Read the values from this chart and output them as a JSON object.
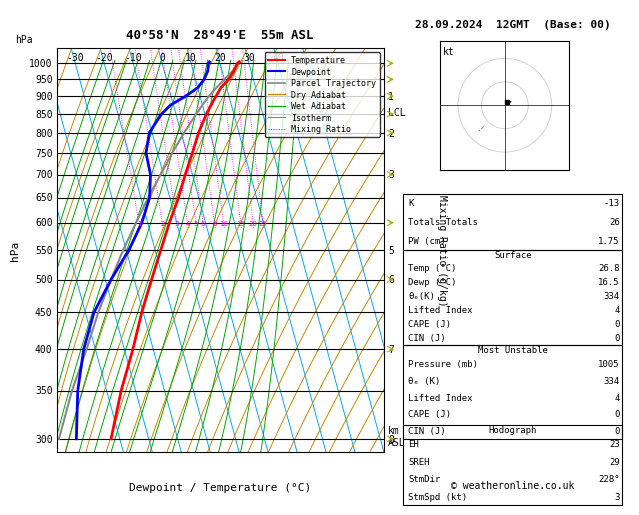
{
  "title_left": "40°58'N  28°49'E  55m ASL",
  "title_right": "28.09.2024  12GMT  (Base: 00)",
  "xlabel": "Dewpoint / Temperature (°C)",
  "ylabel_left": "hPa",
  "ylabel_right_mid": "Mixing Ratio (g/kg)",
  "pressure_levels": [
    300,
    350,
    400,
    450,
    500,
    550,
    600,
    650,
    700,
    750,
    800,
    850,
    900,
    950,
    1000
  ],
  "temp_color": "#ff0000",
  "dewp_color": "#0000ff",
  "parcel_color": "#888888",
  "dry_adiabat_color": "#cc8800",
  "wet_adiabat_color": "#00aa00",
  "isotherm_color": "#00aaff",
  "mixing_ratio_color": "#ff00ff",
  "xlim": [
    -35,
    40
  ],
  "skew_factor": 38,
  "info_panel": {
    "K": "-13",
    "Totals Totals": "26",
    "PW (cm)": "1.75",
    "Surface": {
      "Temp (°C)": "26.8",
      "Dewp (°C)": "16.5",
      "theta_e(K)": "334",
      "Lifted Index": "4",
      "CAPE (J)": "0",
      "CIN (J)": "0"
    },
    "Most Unstable": {
      "Pressure (mb)": "1005",
      "theta_e (K)": "334",
      "Lifted Index": "4",
      "CAPE (J)": "0",
      "CIN (J)": "0"
    },
    "Hodograph": {
      "EH": "23",
      "SREH": "29",
      "StmDir": "228°",
      "StmSpd (kt)": "3"
    }
  },
  "temp_profile": {
    "pressure": [
      1005,
      1000,
      975,
      950,
      925,
      900,
      875,
      850,
      800,
      750,
      700,
      650,
      600,
      550,
      500,
      450,
      400,
      350,
      300
    ],
    "temp": [
      26.8,
      26.0,
      24.0,
      21.5,
      18.0,
      15.5,
      13.0,
      10.5,
      6.0,
      2.0,
      -2.5,
      -7.0,
      -12.5,
      -18.0,
      -24.0,
      -30.5,
      -37.0,
      -45.0,
      -53.0
    ]
  },
  "dewp_profile": {
    "pressure": [
      1005,
      1000,
      975,
      950,
      925,
      900,
      875,
      850,
      825,
      800,
      750,
      700,
      650,
      600,
      550,
      500,
      450,
      400,
      350,
      300
    ],
    "dewp": [
      16.5,
      16.0,
      15.0,
      13.0,
      10.0,
      5.0,
      -1.0,
      -5.0,
      -8.0,
      -11.0,
      -14.0,
      -14.5,
      -17.0,
      -22.0,
      -29.0,
      -38.0,
      -47.0,
      -54.0,
      -60.0,
      -65.0
    ]
  },
  "parcel_profile": {
    "pressure": [
      1005,
      975,
      950,
      925,
      900,
      875,
      850,
      800,
      750,
      700,
      650,
      600,
      550,
      500,
      450,
      400,
      350,
      300
    ],
    "temp": [
      26.8,
      23.5,
      20.0,
      16.5,
      13.0,
      10.0,
      7.0,
      1.0,
      -5.0,
      -11.0,
      -17.5,
      -24.0,
      -31.0,
      -38.0,
      -45.5,
      -53.0,
      -62.0,
      -71.0
    ]
  },
  "km_labels": {
    "300": "8",
    "400": "7",
    "500": "6",
    "550": "5",
    "700": "3",
    "800": "2",
    "900": "1",
    "855": "LCL"
  },
  "mixing_ratios": [
    1,
    2,
    3,
    4,
    5,
    6,
    8,
    10,
    15,
    20,
    25
  ],
  "credit": "© weatheronline.co.uk"
}
